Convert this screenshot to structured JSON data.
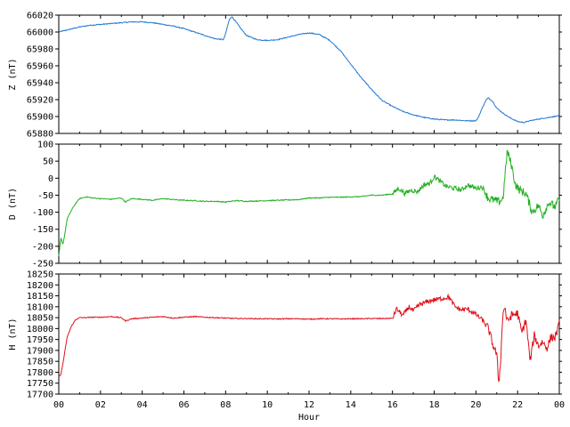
{
  "chart_data": [
    {
      "type": "line",
      "ylabel": "Z (nT)",
      "ylim": [
        65880,
        66020
      ],
      "yticks": [
        65880,
        65900,
        65920,
        65940,
        65960,
        65980,
        66000,
        66020
      ],
      "color": "#1f78d4",
      "grid": false,
      "x": [
        0,
        0.5,
        1,
        1.5,
        2,
        2.5,
        3,
        3.5,
        4,
        4.5,
        5,
        5.5,
        6,
        6.5,
        7,
        7.5,
        7.9,
        8.0,
        8.1,
        8.2,
        8.3,
        8.5,
        8.7,
        9,
        9.5,
        10,
        10.5,
        11,
        11.5,
        12,
        12.5,
        13,
        13.5,
        14,
        14.5,
        15,
        15.5,
        16,
        16.5,
        17,
        17.5,
        18,
        18.5,
        19,
        19.5,
        20,
        20.1,
        20.3,
        20.5,
        20.6,
        20.8,
        21,
        21.3,
        21.6,
        22,
        22.3,
        22.6,
        23,
        23.5,
        24
      ],
      "y": [
        66000,
        66003,
        66006,
        66008,
        66009,
        66010,
        66011,
        66012,
        66012,
        66011,
        66009,
        66007,
        66004,
        66000,
        65996,
        65992,
        65991,
        65998,
        66008,
        66016,
        66018,
        66012,
        66005,
        65996,
        65991,
        65990,
        65991,
        65994,
        65997,
        65999,
        65997,
        65990,
        65978,
        65962,
        65946,
        65932,
        65919,
        65912,
        65906,
        65902,
        65899,
        65897,
        65896,
        65896,
        65895,
        65895,
        65898,
        65910,
        65920,
        65922,
        65918,
        65910,
        65904,
        65899,
        65894,
        65893,
        65895,
        65897,
        65899,
        65901
      ]
    },
    {
      "type": "line",
      "ylabel": "D (nT)",
      "ylim": [
        -250,
        100
      ],
      "yticks": [
        -250,
        -200,
        -150,
        -100,
        -50,
        0,
        50,
        100
      ],
      "color": "#1fb01f",
      "grid": false,
      "x": [
        0,
        0.1,
        0.2,
        0.3,
        0.4,
        0.6,
        0.8,
        1,
        1.3,
        1.6,
        2,
        2.5,
        3,
        3.2,
        3.5,
        4,
        4.5,
        5,
        5.5,
        6,
        6.5,
        7,
        7.5,
        8,
        8.5,
        9,
        9.5,
        10,
        10.5,
        11,
        11.5,
        12,
        12.5,
        13,
        13.5,
        14,
        14.5,
        15,
        15.5,
        16,
        16.3,
        16.6,
        16.9,
        17.2,
        17.5,
        17.8,
        18,
        18.3,
        18.6,
        19,
        19.3,
        19.6,
        20,
        20.3,
        20.6,
        20.9,
        21.1,
        21.3,
        21.5,
        21.7,
        21.9,
        22.1,
        22.4,
        22.7,
        23,
        23.2,
        23.5,
        23.8,
        24
      ],
      "y": [
        -230,
        -175,
        -195,
        -160,
        -120,
        -95,
        -75,
        -60,
        -55,
        -58,
        -60,
        -62,
        -58,
        -70,
        -60,
        -62,
        -65,
        -60,
        -63,
        -65,
        -66,
        -68,
        -68,
        -70,
        -66,
        -68,
        -67,
        -66,
        -65,
        -64,
        -63,
        -58,
        -58,
        -56,
        -56,
        -55,
        -54,
        -50,
        -50,
        -46,
        -30,
        -45,
        -35,
        -40,
        -20,
        -15,
        5,
        -10,
        -25,
        -30,
        -35,
        -20,
        -30,
        -25,
        -60,
        -65,
        -70,
        -60,
        80,
        40,
        -20,
        -35,
        -45,
        -100,
        -80,
        -110,
        -70,
        -85,
        -60
      ]
    },
    {
      "type": "line",
      "ylabel": "H (nT)",
      "xlabel": "Hour",
      "ylim": [
        17700,
        18250
      ],
      "yticks": [
        17700,
        17750,
        17800,
        17850,
        17900,
        17950,
        18000,
        18050,
        18100,
        18150,
        18200,
        18250
      ],
      "xticks": [
        "00",
        "02",
        "04",
        "06",
        "08",
        "10",
        "12",
        "14",
        "16",
        "18",
        "20",
        "22",
        "00"
      ],
      "color": "#e0101a",
      "grid": false,
      "x": [
        0,
        0.1,
        0.2,
        0.3,
        0.4,
        0.6,
        0.8,
        1,
        1.3,
        1.6,
        2,
        2.5,
        3,
        3.2,
        3.5,
        4,
        4.5,
        5,
        5.5,
        6,
        6.5,
        7,
        7.5,
        8,
        8.5,
        9,
        9.5,
        10,
        10.5,
        11,
        11.5,
        12,
        12.5,
        13,
        13.5,
        14,
        14.5,
        15,
        15.5,
        16,
        16.2,
        16.5,
        16.8,
        17,
        17.3,
        17.6,
        17.9,
        18.2,
        18.5,
        18.7,
        19,
        19.3,
        19.6,
        20,
        20.3,
        20.6,
        20.8,
        21,
        21.1,
        21.2,
        21.3,
        21.4,
        21.5,
        21.7,
        22,
        22.2,
        22.4,
        22.6,
        22.8,
        23,
        23.2,
        23.4,
        23.6,
        23.8,
        24
      ],
      "y": [
        17780,
        17790,
        17840,
        17900,
        17960,
        18010,
        18040,
        18050,
        18050,
        18052,
        18052,
        18055,
        18050,
        18035,
        18045,
        18048,
        18052,
        18055,
        18048,
        18052,
        18055,
        18052,
        18050,
        18048,
        18046,
        18046,
        18045,
        18045,
        18044,
        18045,
        18045,
        18043,
        18045,
        18045,
        18044,
        18045,
        18045,
        18046,
        18046,
        18047,
        18090,
        18060,
        18100,
        18080,
        18110,
        18120,
        18130,
        18135,
        18140,
        18145,
        18100,
        18085,
        18090,
        18065,
        18040,
        18000,
        17930,
        17880,
        17745,
        17880,
        18080,
        18095,
        18030,
        18060,
        18070,
        17980,
        18040,
        17850,
        17970,
        17920,
        17940,
        17910,
        17960,
        17960,
        18020
      ]
    }
  ]
}
